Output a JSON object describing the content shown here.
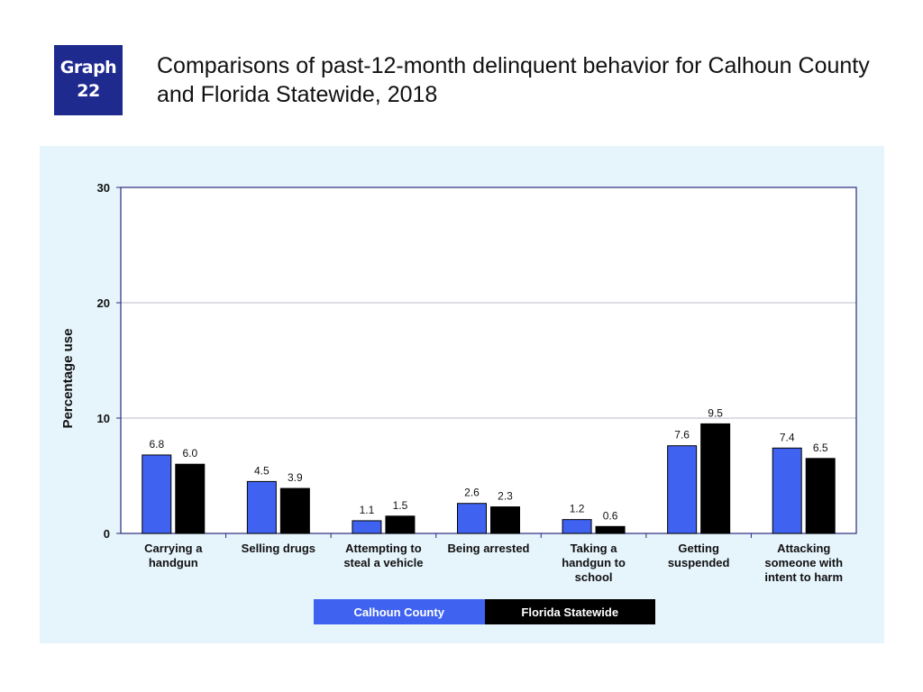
{
  "badge": {
    "line1": "Graph",
    "line2": "22"
  },
  "title": "Comparisons of past-12-month delinquent behavior for Calhoun County and Florida Statewide, 2018",
  "colors": {
    "calhoun": "#3f63f0",
    "florida": "#000000",
    "badge": "#1f2a8f",
    "panel": "#e6f4fc",
    "plot": "#ffffff",
    "axis": "#2a2a7a"
  },
  "chart_data": {
    "type": "bar",
    "title": "Comparisons of past-12-month delinquent behavior for Calhoun County and Florida Statewide, 2018",
    "xlabel": "",
    "ylabel": "Percentage use",
    "ylim": [
      0,
      30
    ],
    "yticks": [
      0,
      10,
      20,
      30
    ],
    "grid": true,
    "legend_position": "bottom-center",
    "categories": [
      [
        "Carrying a",
        "handgun"
      ],
      [
        "Selling drugs"
      ],
      [
        "Attempting to",
        "steal a vehicle"
      ],
      [
        "Being arrested"
      ],
      [
        "Taking a",
        "handgun to",
        "school"
      ],
      [
        "Getting",
        "suspended"
      ],
      [
        "Attacking",
        "someone with",
        "intent to harm"
      ]
    ],
    "series": [
      {
        "name": "Calhoun County",
        "values": [
          6.8,
          4.5,
          1.1,
          2.6,
          1.2,
          7.6,
          7.4
        ]
      },
      {
        "name": "Florida Statewide",
        "values": [
          6.0,
          3.9,
          1.5,
          2.3,
          0.6,
          9.5,
          6.5
        ]
      }
    ]
  }
}
